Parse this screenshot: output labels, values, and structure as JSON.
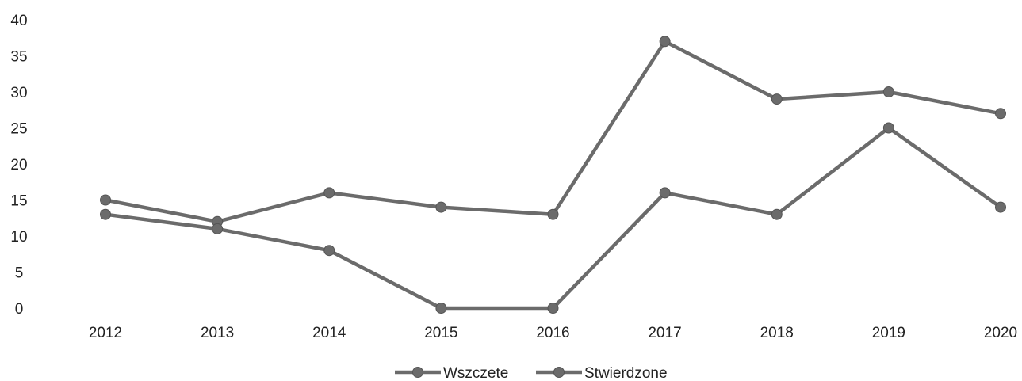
{
  "chart_data": {
    "type": "line",
    "title": "",
    "xlabel": "",
    "ylabel": "",
    "x": [
      "2012",
      "2013",
      "2014",
      "2015",
      "2016",
      "2017",
      "2018",
      "2019",
      "2020"
    ],
    "ylim": [
      0,
      40
    ],
    "yticks": [
      0,
      5,
      10,
      15,
      20,
      25,
      30,
      35,
      40
    ],
    "grid": false,
    "legend": "bottom-center",
    "series": [
      {
        "name": "Wszczete",
        "color": "#6b6b6b",
        "values": [
          15,
          12,
          16,
          14,
          13,
          37,
          29,
          30,
          27
        ]
      },
      {
        "name": "Stwierdzone",
        "color": "#6b6b6b",
        "values": [
          13,
          11,
          8,
          0,
          0,
          16,
          13,
          25,
          14
        ]
      }
    ]
  }
}
